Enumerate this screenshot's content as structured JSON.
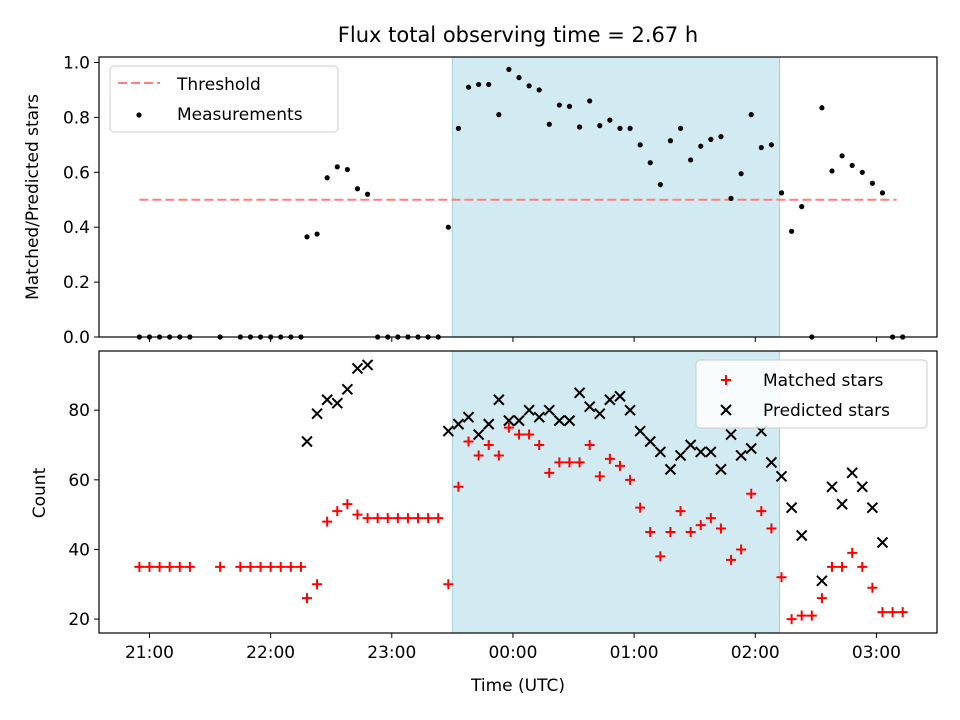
{
  "title": "Flux total observing time = 2.67 h",
  "xlabel": "Time (UTC)",
  "x_ticks": [
    "21:00",
    "22:00",
    "23:00",
    "00:00",
    "01:00",
    "02:00",
    "03:00"
  ],
  "colors": {
    "highlight": "#add8e6",
    "threshold": "#ff7f7f",
    "measurements": "#000000",
    "matched": "#ff0000",
    "predicted": "#000000"
  },
  "chart_data": [
    {
      "type": "scatter",
      "ylabel": "Matched/Predicted stars",
      "ylim": [
        0,
        1.02
      ],
      "y_ticks": [
        "0.0",
        "0.2",
        "0.4",
        "0.6",
        "0.8",
        "1.0"
      ],
      "x_range": [
        "20:35",
        "03:30"
      ],
      "highlight_span": [
        "23:30",
        "02:12"
      ],
      "threshold": {
        "name": "Threshold",
        "value": 0.5,
        "x_range": [
          "20:55",
          "03:10"
        ]
      },
      "legend": {
        "position": "upper-left",
        "entries": [
          "Threshold",
          "Measurements"
        ]
      },
      "series": [
        {
          "name": "Measurements",
          "marker": "dot",
          "x": [
            "20:55",
            "21:00",
            "21:05",
            "21:10",
            "21:15",
            "21:20",
            "21:35",
            "21:45",
            "21:50",
            "21:55",
            "22:00",
            "22:05",
            "22:10",
            "22:15",
            "22:18",
            "22:23",
            "22:28",
            "22:33",
            "22:38",
            "22:43",
            "22:48",
            "22:53",
            "22:58",
            "23:03",
            "23:08",
            "23:13",
            "23:18",
            "23:23",
            "23:28",
            "23:33",
            "23:38",
            "23:43",
            "23:48",
            "23:53",
            "23:58",
            "00:03",
            "00:08",
            "00:13",
            "00:18",
            "00:23",
            "00:28",
            "00:33",
            "00:38",
            "00:43",
            "00:48",
            "00:53",
            "00:58",
            "01:03",
            "01:08",
            "01:13",
            "01:18",
            "01:23",
            "01:28",
            "01:33",
            "01:38",
            "01:43",
            "01:48",
            "01:53",
            "01:58",
            "02:03",
            "02:08",
            "02:13",
            "02:18",
            "02:23",
            "02:28",
            "02:33",
            "02:38",
            "02:43",
            "02:48",
            "02:53",
            "02:58",
            "03:03",
            "03:08",
            "03:13"
          ],
          "y": [
            0.0,
            0.0,
            0.0,
            0.0,
            0.0,
            0.0,
            0.0,
            0.0,
            0.0,
            0.0,
            0.0,
            0.0,
            0.0,
            0.0,
            0.365,
            0.375,
            0.58,
            0.62,
            0.61,
            0.54,
            0.52,
            0.0,
            0.0,
            0.0,
            0.0,
            0.0,
            0.0,
            0.0,
            0.4,
            0.76,
            0.91,
            0.92,
            0.92,
            0.81,
            0.975,
            0.945,
            0.915,
            0.9,
            0.775,
            0.845,
            0.84,
            0.765,
            0.86,
            0.77,
            0.79,
            0.76,
            0.76,
            0.7,
            0.635,
            0.555,
            0.715,
            0.76,
            0.645,
            0.695,
            0.72,
            0.73,
            0.505,
            0.595,
            0.81,
            0.69,
            0.7,
            0.525,
            0.385,
            0.475,
            0.0,
            0.835,
            0.605,
            0.66,
            0.625,
            0.6,
            0.56,
            0.525,
            0.0,
            0.0
          ]
        }
      ]
    },
    {
      "type": "scatter",
      "ylabel": "Count",
      "ylim": [
        16,
        97
      ],
      "y_ticks": [
        "20",
        "40",
        "60",
        "80"
      ],
      "x_range": [
        "20:35",
        "03:30"
      ],
      "highlight_span": [
        "23:30",
        "02:12"
      ],
      "legend": {
        "position": "upper-right",
        "entries": [
          "Matched stars",
          "Predicted stars"
        ]
      },
      "series": [
        {
          "name": "Matched stars",
          "marker": "plus",
          "x": [
            "20:55",
            "21:00",
            "21:05",
            "21:10",
            "21:15",
            "21:20",
            "21:35",
            "21:45",
            "21:50",
            "21:55",
            "22:00",
            "22:05",
            "22:10",
            "22:15",
            "22:18",
            "22:23",
            "22:28",
            "22:33",
            "22:38",
            "22:43",
            "22:48",
            "22:53",
            "22:58",
            "23:03",
            "23:08",
            "23:13",
            "23:18",
            "23:23",
            "23:28",
            "23:33",
            "23:38",
            "23:43",
            "23:48",
            "23:53",
            "23:58",
            "00:03",
            "00:08",
            "00:13",
            "00:18",
            "00:23",
            "00:28",
            "00:33",
            "00:38",
            "00:43",
            "00:48",
            "00:53",
            "00:58",
            "01:03",
            "01:08",
            "01:13",
            "01:18",
            "01:23",
            "01:28",
            "01:33",
            "01:38",
            "01:43",
            "01:48",
            "01:53",
            "01:58",
            "02:03",
            "02:08",
            "02:13",
            "02:18",
            "02:23",
            "02:28",
            "02:33",
            "02:38",
            "02:43",
            "02:48",
            "02:53",
            "02:58",
            "03:03",
            "03:08",
            "03:13"
          ],
          "y": [
            35,
            35,
            35,
            35,
            35,
            35,
            35,
            35,
            35,
            35,
            35,
            35,
            35,
            35,
            26,
            30,
            48,
            51,
            53,
            50,
            49,
            49,
            49,
            49,
            49,
            49,
            49,
            49,
            30,
            58,
            71,
            67,
            70,
            67,
            75,
            73,
            73,
            70,
            62,
            65,
            65,
            65,
            70,
            61,
            66,
            64,
            60,
            52,
            45,
            38,
            45,
            51,
            45,
            47,
            49,
            46,
            37,
            40,
            56,
            51,
            46,
            32,
            20,
            21,
            21,
            26,
            35,
            35,
            39,
            35,
            29,
            22,
            22,
            22
          ]
        },
        {
          "name": "Predicted stars",
          "marker": "x",
          "x": [
            "22:18",
            "22:23",
            "22:28",
            "22:33",
            "22:38",
            "22:43",
            "22:48",
            "23:28",
            "23:33",
            "23:38",
            "23:43",
            "23:48",
            "23:53",
            "23:58",
            "00:03",
            "00:08",
            "00:13",
            "00:18",
            "00:23",
            "00:28",
            "00:33",
            "00:38",
            "00:43",
            "00:48",
            "00:53",
            "00:58",
            "01:03",
            "01:08",
            "01:13",
            "01:18",
            "01:23",
            "01:28",
            "01:33",
            "01:38",
            "01:43",
            "01:48",
            "01:53",
            "01:58",
            "02:03",
            "02:08",
            "02:13",
            "02:18",
            "02:23",
            "02:33",
            "02:38",
            "02:43",
            "02:48",
            "02:53",
            "02:58",
            "03:03"
          ],
          "y": [
            71,
            79,
            83,
            82,
            86,
            92,
            93,
            74,
            76,
            78,
            73,
            76,
            83,
            77,
            77,
            80,
            78,
            80,
            77,
            77,
            85,
            81,
            79,
            83,
            84,
            80,
            74,
            71,
            68,
            63,
            67,
            70,
            68,
            68,
            63,
            73,
            67,
            69,
            74,
            65,
            61,
            52,
            44,
            31,
            58,
            53,
            62,
            58,
            52,
            42
          ]
        }
      ]
    }
  ]
}
